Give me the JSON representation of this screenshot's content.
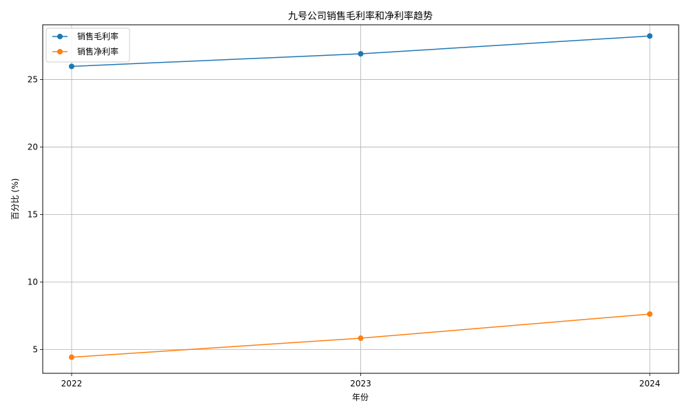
{
  "chart_data": {
    "type": "line",
    "title": "九号公司销售毛利率和净利率趋势",
    "xlabel": "年份",
    "ylabel": "百分比 (%)",
    "categories": [
      "2022",
      "2023",
      "2024"
    ],
    "x": [
      2022,
      2023,
      2024
    ],
    "xlim": [
      2021.9,
      2024.1
    ],
    "ylim": [
      3.24,
      29.06
    ],
    "yticks": [
      5,
      10,
      15,
      20,
      25
    ],
    "grid": true,
    "legend_position": "top-left",
    "series": [
      {
        "name": "销售毛利率",
        "color": "#1f77b4",
        "values": [
          25.98,
          26.91,
          28.23
        ]
      },
      {
        "name": "销售净利率",
        "color": "#ff7f0e",
        "values": [
          4.43,
          5.84,
          7.63
        ]
      }
    ]
  }
}
